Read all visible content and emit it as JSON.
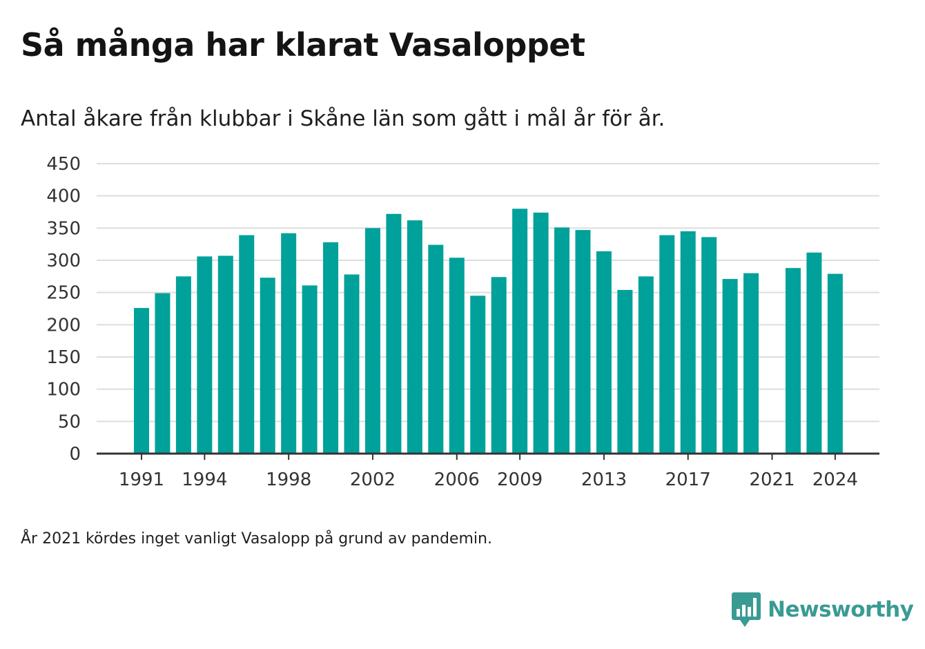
{
  "title": "Så många har klarat Vasaloppet",
  "subtitle": "Antal åkare från klubbar i Skåne län som gått i mål år för år.",
  "note": "År 2021 kördes inget vanligt Vasalopp på grund av pandemin.",
  "brand": {
    "name": "Newsworthy",
    "logo_icon": "bar-chart-speech-bubble-icon"
  },
  "colors": {
    "bar": "#00a19a",
    "brand": "#3a9b93",
    "grid": "#dddddd",
    "axis": "#333333"
  },
  "chart_data": {
    "type": "bar",
    "categories": [
      "1991",
      "1992",
      "1993",
      "1994",
      "1995",
      "1996",
      "1997",
      "1998",
      "1999",
      "2000",
      "2001",
      "2002",
      "2003",
      "2004",
      "2005",
      "2006",
      "2007",
      "2008",
      "2009",
      "2010",
      "2011",
      "2012",
      "2013",
      "2014",
      "2015",
      "2016",
      "2017",
      "2018",
      "2019",
      "2020",
      "2021",
      "2022",
      "2023",
      "2024"
    ],
    "values": [
      226,
      249,
      275,
      306,
      307,
      339,
      273,
      342,
      261,
      328,
      278,
      350,
      372,
      362,
      324,
      304,
      245,
      274,
      380,
      374,
      351,
      347,
      314,
      254,
      275,
      339,
      345,
      336,
      271,
      280,
      null,
      288,
      312,
      279
    ],
    "x_tick_labels": [
      "1991",
      "1994",
      "1998",
      "2002",
      "2006",
      "2009",
      "2013",
      "2017",
      "2021",
      "2024"
    ],
    "y_ticks": [
      "0",
      "50",
      "100",
      "150",
      "200",
      "250",
      "300",
      "350",
      "400",
      "450"
    ],
    "ylim": [
      0,
      450
    ],
    "grid": true,
    "legend": "none",
    "xlabel": "",
    "ylabel": ""
  }
}
